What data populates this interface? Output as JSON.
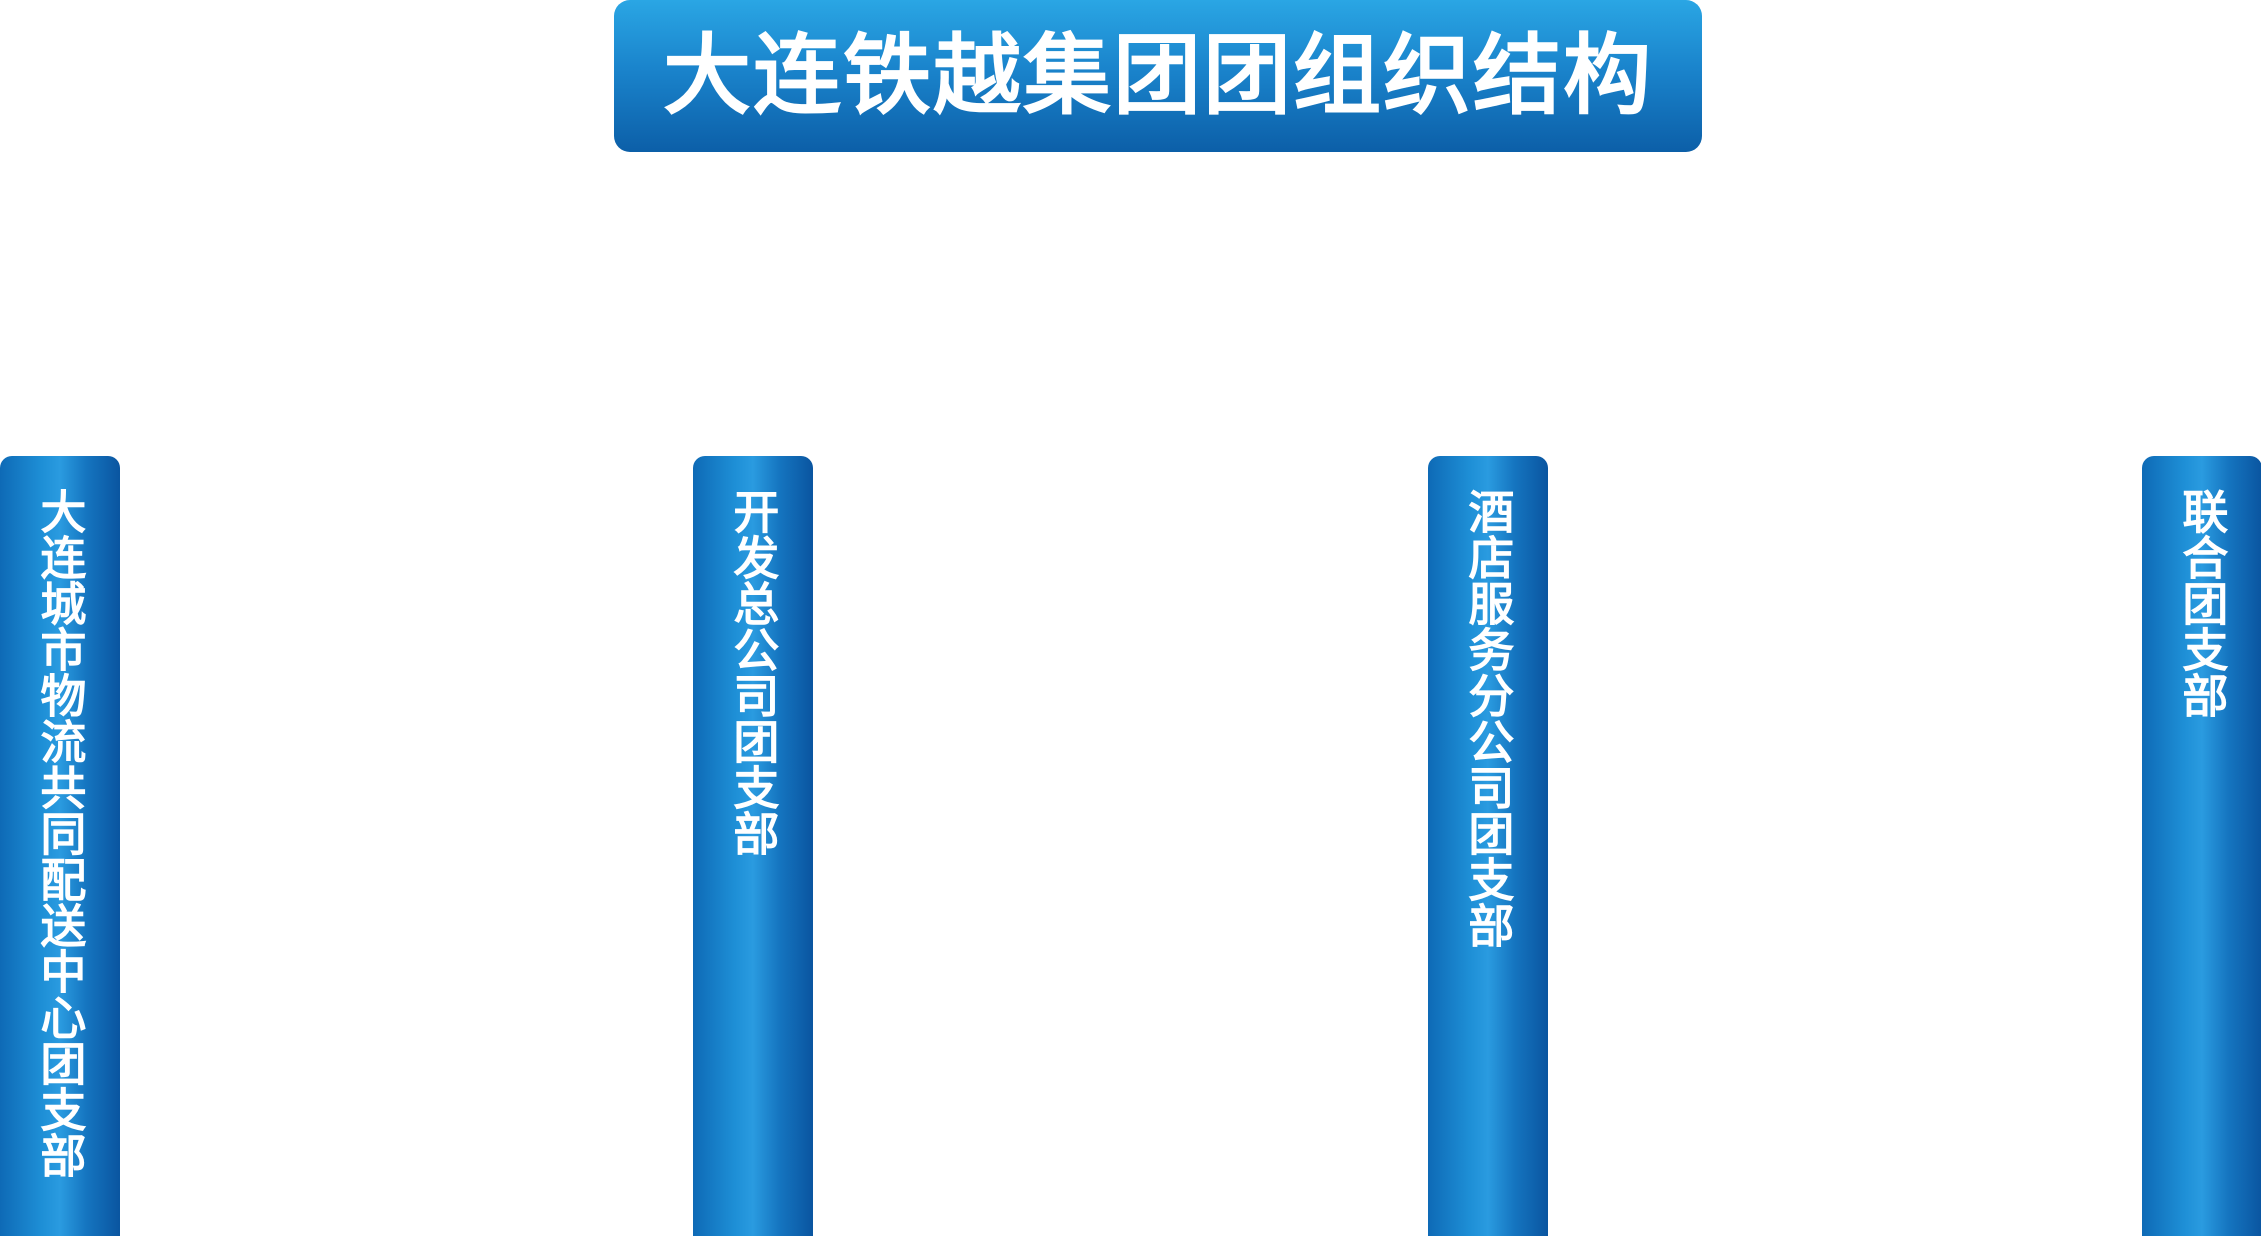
{
  "title": "大连铁越集团团组织结构",
  "branches": [
    {
      "label": "大连城市物流共同配送中心团支部"
    },
    {
      "label": "开发总公司团支部"
    },
    {
      "label": "酒店服务分公司团支部"
    },
    {
      "label": "联合团支部"
    }
  ],
  "colors": {
    "primary_blue": "#1a84cc",
    "dark_blue": "#0c5fa8",
    "light_blue": "#2aa6e4",
    "text": "#ffffff",
    "background": "#ffffff"
  }
}
